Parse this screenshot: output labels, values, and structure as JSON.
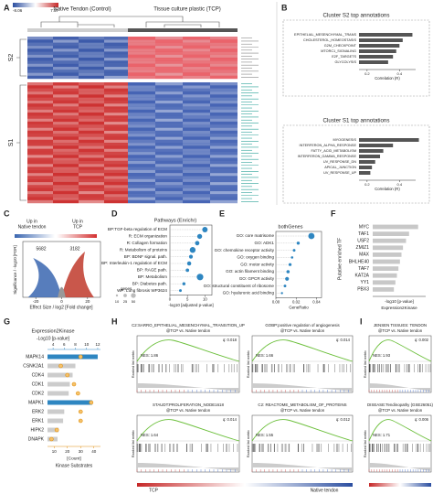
{
  "panel_labels": [
    "A",
    "B",
    "C",
    "D",
    "E",
    "F",
    "G",
    "H",
    "I"
  ],
  "heatmap": {
    "title_left": "Native Tendon (Control)",
    "title_right": "Tissue culture plastic (TCP)",
    "scale_min": -8.06,
    "scale_max": 7.57,
    "clusters": [
      "S2",
      "S1"
    ]
  },
  "annotations": [
    {
      "title": "Cluster S2 top annotations",
      "categories": [
        "EPITHELIAL_MESENCHYMAL_TRANS",
        "CHOLESTEROL_HOMEOSTASIS",
        "G2M_CHECKPOINT",
        "MTORC1_SIGNALING",
        "E2F_TARGETS",
        "GLYCOLYSIS"
      ],
      "values": [
        0.48,
        0.42,
        0.4,
        0.38,
        0.36,
        0.33
      ],
      "xlim": [
        0.15,
        0.5
      ],
      "xticks": [
        0.2,
        0.4
      ],
      "xlabel": "Correlation (R)",
      "color": "#555555"
    },
    {
      "title": "Cluster S1 top annotations",
      "categories": [
        "MYOGENESIS",
        "INTERFERON_ALPHA_RESPONSE",
        "FATTY_ACID_METABOLISM",
        "INTERFERON_GAMMA_RESPONSE",
        "UV_RESPONSE_DN",
        "APICAL_JUNCTION",
        "UV_RESPONSE_UP"
      ],
      "values": [
        0.52,
        0.36,
        0.3,
        0.28,
        0.25,
        0.23,
        0.22
      ],
      "xlim": [
        0.15,
        0.5
      ],
      "xticks": [
        0.2,
        0.4
      ],
      "xlabel": "Correlation (R)",
      "color": "#555555"
    }
  ],
  "volcano": {
    "left_label": [
      "Up in",
      "Native tendon"
    ],
    "right_label": [
      "Up in",
      "TCP"
    ],
    "left_count": 5682,
    "right_count": 3182,
    "xlim": [
      -30,
      30
    ],
    "xticks": [
      -20,
      0,
      20
    ],
    "xlabel": "Effect Size / log2 [Fold change]",
    "ylabel": "Significance / -log10 [FDR]"
  },
  "pathways": {
    "title": "Pathways (Enrichr)",
    "categories": [
      "BP:TGF-beta regulation of ECM",
      "R: ECM organization",
      "R: Collagen formation",
      "R: Metabolism of proteins",
      "BP: BDNF signal. path.",
      "BP: Interleukin-1 regulation of ECM",
      "BP: RAGE path.",
      "BP: Metabolism",
      "BP: Diabetes path.",
      "WP: Lung fibrosis WP3624"
    ],
    "values": [
      10,
      8.5,
      7.8,
      6.5,
      6,
      5.5,
      5,
      8.6,
      4,
      3
    ],
    "sizes": [
      60,
      50,
      40,
      70,
      30,
      35,
      25,
      90,
      20,
      15
    ],
    "xlim": [
      0,
      12
    ],
    "xticks": [
      0,
      5,
      10
    ],
    "xlabel": "-log10 [adjusted p-value]",
    "size_title": "genes",
    "size_legend": [
      10,
      25,
      50
    ],
    "color": "#2e86c1"
  },
  "go": {
    "title": "bothGenes",
    "categories": [
      "GO: core matrisome",
      "GO: ADK1",
      "GO: chemokine receptor activity",
      "GO: oxygen binding",
      "GO: motor activity",
      "GO: actin filament binding",
      "GO: GPCR activity",
      "GO: structural constituent of ribosome",
      "GO: hyaluronic acid binding"
    ],
    "values": [
      0.035,
      0.022,
      0.018,
      0.016,
      0.014,
      0.012,
      0.011,
      0.009,
      0.006
    ],
    "sizes": [
      80,
      20,
      15,
      12,
      18,
      22,
      30,
      14,
      10
    ],
    "xlim": [
      0,
      0.045
    ],
    "xticks": [
      {
        "value": 0,
        "label": "0.00"
      },
      {
        "value": 0.02,
        "label": "0.02"
      },
      {
        "value": 0.04,
        "label": "0.04"
      }
    ],
    "xlabel": "GeneRatio",
    "color": "#2e86c1"
  },
  "tf": {
    "ylabel": "Putative enriched TF",
    "categories": [
      "MYC",
      "TAF1",
      "USF2",
      "ZMIZ1",
      "MAX",
      "BHLHE40",
      "TAF7",
      "KAT2A",
      "YY1",
      "PBX3"
    ],
    "values": [
      3.0,
      2.4,
      2.2,
      2.0,
      1.9,
      1.8,
      1.7,
      1.6,
      1.5,
      1.4
    ],
    "xlim": [
      0,
      3.5
    ],
    "xlabel": "-log10 [p-value]",
    "source": "Expression2Kinase",
    "color": "#c8c8c8"
  },
  "kinase": {
    "title": "Expression2Kinase",
    "top_label": "-Log10 [p-value]",
    "categories": [
      "MAPK14",
      "CSNK2A1",
      "CDK4",
      "CDK1",
      "CDK2",
      "MAPK1",
      "ERK2",
      "ERK1",
      "HIPK2",
      "DNAPK"
    ],
    "values": [
      12,
      8,
      7.5,
      7,
      6.8,
      11,
      6,
      5.8,
      5,
      4.8
    ],
    "bar_colors": [
      "#2e86c1",
      "#cccccc",
      "#cccccc",
      "#cccccc",
      "#cccccc",
      "#2e86c1",
      "#cccccc",
      "#cccccc",
      "#cccccc",
      "#cccccc"
    ],
    "xlim": [
      3,
      12.5
    ],
    "xticks": [
      4,
      6,
      8,
      10,
      12
    ],
    "counts": [
      30,
      15,
      20,
      25,
      28,
      38,
      30,
      30,
      12,
      8
    ],
    "count_lim": [
      5,
      45
    ],
    "count_ticks": [
      10,
      20,
      30,
      40
    ],
    "count_label": "[Count]",
    "xlabel": "Kinase Substrates",
    "count_color": "#e08e0b"
  },
  "gsea": {
    "ylabel": "Ranked list metric",
    "left": "TCP",
    "right": "Native tendon",
    "panels": [
      {
        "title": [
          "C2:SARRO_EPITHELIAL_MESENCHYMAL_TRANSITION_UP",
          "@TCP vs. Native tendon"
        ],
        "q": "q: 0.018",
        "nes": "NES: 1.86"
      },
      {
        "title": [
          "GOBP:positive regulation of angiogenesis",
          "@TCP vs. Native tendon"
        ],
        "q": "q: 0.014",
        "nes": "NES: 1.66"
      },
      {
        "title": [
          "STAUDT:PROLIFERATION_NODE1618",
          "@TCP vs. Native tendon"
        ],
        "q": "q: 0.014",
        "nes": "NES: 1.64"
      },
      {
        "title": [
          "C2: REACTOME_METABOLISM_OF_PROTEINS",
          "@TCP vs. Native tendon"
        ],
        "q": "q: 0.012",
        "nes": "NES: 1.55"
      },
      {
        "title": [
          "JENSEN TISSUES: TENDON",
          "@TCP vs. Native tendon"
        ],
        "q": "q: 0.002",
        "nes": "NES: 1.93"
      },
      {
        "title": [
          "DISEASE:Tendinopathy (GSE26051)",
          "@TCP vs. Native tendon"
        ],
        "q": "q: 0.006",
        "nes": "NES: 1.71"
      }
    ]
  }
}
